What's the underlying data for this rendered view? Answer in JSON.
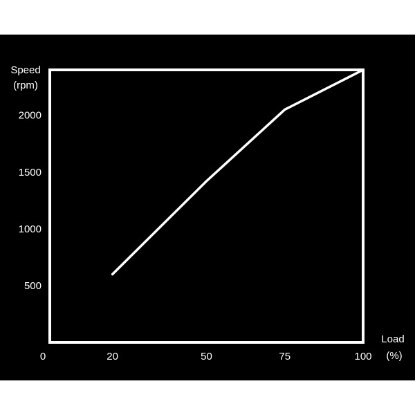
{
  "chart_data": {
    "type": "line",
    "ylabel_line1": "Speed",
    "ylabel_line2": "(rpm)",
    "xlabel_line1": "Load",
    "xlabel_line2": "(%)",
    "xlim": [
      0,
      100
    ],
    "ylim": [
      0,
      2400
    ],
    "x_ticks": [
      0,
      20,
      50,
      75,
      100
    ],
    "y_ticks": [
      500,
      1000,
      1500,
      2000
    ],
    "grid": true,
    "series": [
      {
        "x": [
          20,
          50,
          75,
          100
        ],
        "y": [
          600,
          1420,
          2050,
          2400
        ]
      }
    ]
  },
  "colors": {
    "background": "#000000",
    "line": "#ffffff",
    "axis": "#ffffff",
    "grid": "#8a8a8a"
  }
}
